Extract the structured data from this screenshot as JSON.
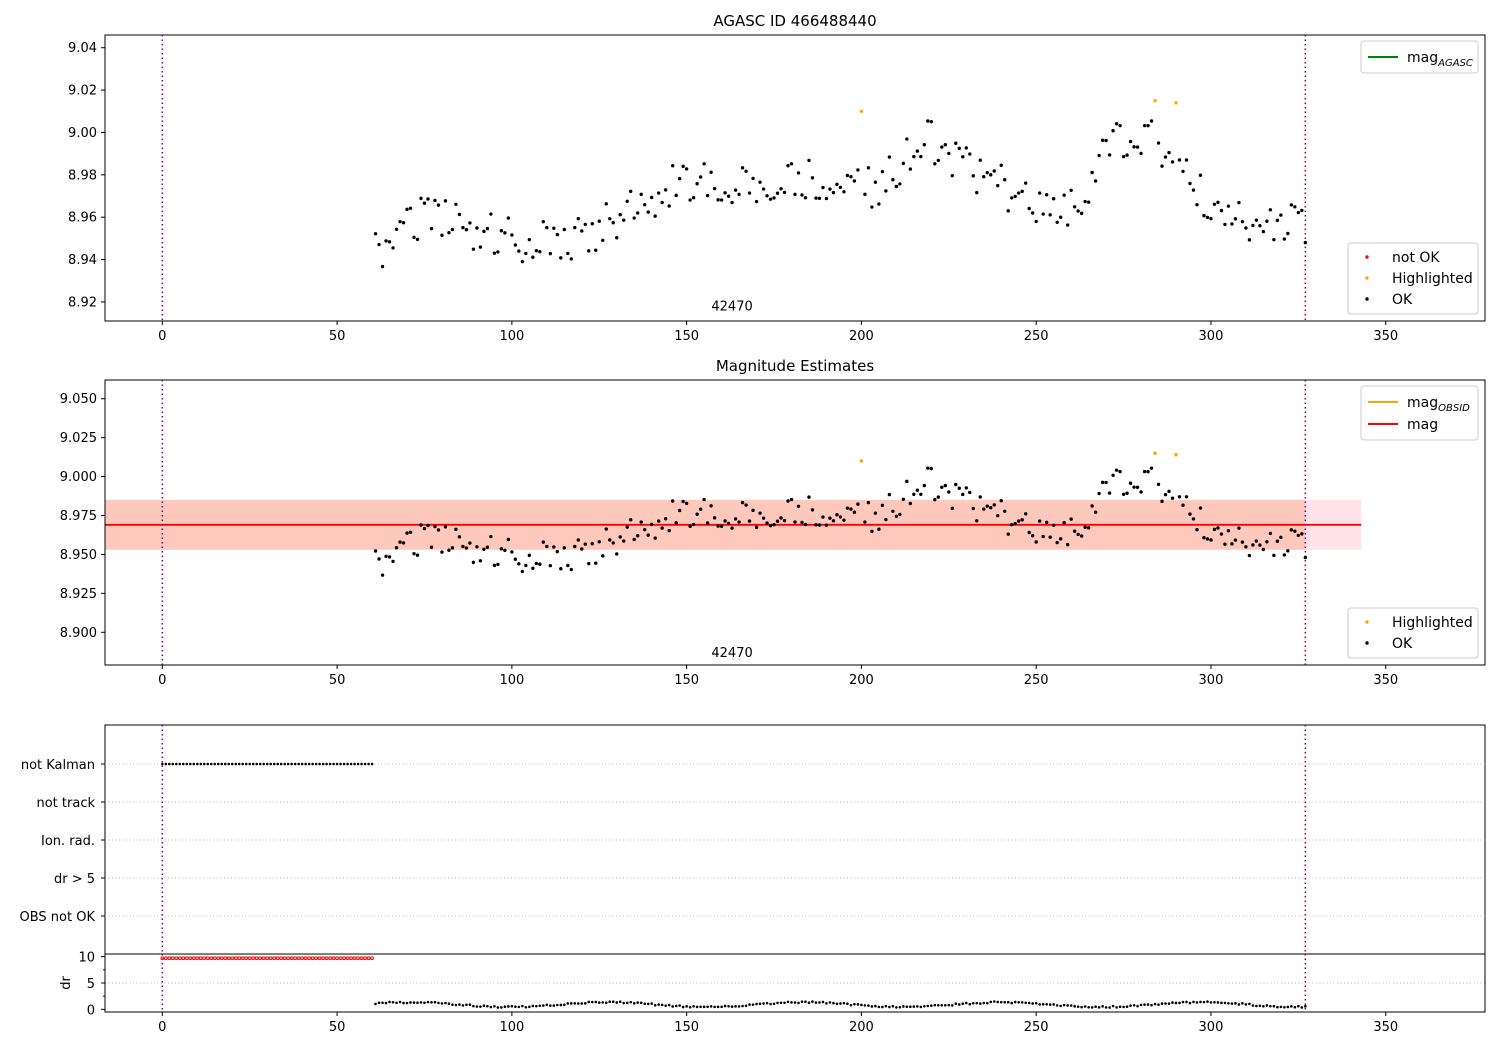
{
  "chart_data": [
    {
      "type": "scatter",
      "title": "AGASC ID 466488440",
      "xlim": [
        -16.4,
        378.4
      ],
      "ylim": [
        8.911,
        9.046
      ],
      "x_ticks": [
        0,
        50,
        100,
        150,
        200,
        250,
        300,
        350
      ],
      "y_ticks": [
        8.92,
        8.94,
        8.96,
        8.98,
        9.0,
        9.02,
        9.04
      ],
      "y_tick_format": 2,
      "vlines": [
        0,
        327
      ],
      "obsid_label": {
        "text": "42470",
        "x": 163,
        "y": 8.916
      },
      "legend_top": {
        "position": "top-right",
        "entries": [
          {
            "name": "mag",
            "sub": "AGASC",
            "color": "#008000",
            "kind": "line"
          }
        ]
      },
      "legend_bottom": {
        "position": "bottom-right",
        "entries": [
          {
            "name": "not OK",
            "color": "#ff0000",
            "kind": "dot"
          },
          {
            "name": "Highlighted",
            "color": "#ffa500",
            "kind": "dot"
          },
          {
            "name": "OK",
            "color": "#000000",
            "kind": "dot"
          }
        ]
      },
      "series": [
        {
          "name": "OK",
          "color": "#000000",
          "trend": "ok"
        },
        {
          "name": "Highlighted",
          "color": "#ffa500",
          "points": [
            [
              200,
              9.01
            ],
            [
              284,
              9.015
            ],
            [
              290,
              9.014
            ]
          ]
        }
      ]
    },
    {
      "type": "scatter",
      "title": "Magnitude Estimates",
      "xlim": [
        -16.4,
        378.4
      ],
      "ylim": [
        8.879,
        9.062
      ],
      "x_ticks": [
        0,
        50,
        100,
        150,
        200,
        250,
        300,
        350
      ],
      "y_ticks": [
        8.9,
        8.925,
        8.95,
        8.975,
        9.0,
        9.025,
        9.05
      ],
      "y_tick_format": 3,
      "vlines": [
        0,
        327
      ],
      "obsid_label": {
        "text": "42470",
        "x": 163,
        "y": 8.884
      },
      "mag_line": {
        "value": 8.969,
        "x_end": 343,
        "color": "#ff0000"
      },
      "band_outer": {
        "low": 8.953,
        "high": 8.985,
        "x_end": 343,
        "color": "#ffc0cb"
      },
      "band_inner": {
        "low": 8.953,
        "high": 8.985,
        "x_start": 61,
        "x_end": 327,
        "color": "#ffa07a"
      },
      "legend_top": {
        "position": "top-right",
        "entries": [
          {
            "name": "mag",
            "sub": "OBSID",
            "color": "#ffa500",
            "kind": "line"
          },
          {
            "name": "mag",
            "sub": "",
            "color": "#ff0000",
            "kind": "line"
          }
        ]
      },
      "legend_bottom": {
        "position": "bottom-right",
        "entries": [
          {
            "name": "Highlighted",
            "color": "#ffa500",
            "kind": "dot"
          },
          {
            "name": "OK",
            "color": "#000000",
            "kind": "dot"
          }
        ]
      },
      "series": [
        {
          "name": "OK",
          "color": "#000000",
          "trend": "ok"
        },
        {
          "name": "Highlighted",
          "color": "#ffa500",
          "points": [
            [
              200,
              9.01
            ],
            [
              284,
              9.015
            ],
            [
              290,
              9.014
            ]
          ]
        }
      ]
    },
    {
      "type": "scatter",
      "title": "",
      "xlim": [
        -16.4,
        378.4
      ],
      "x_ticks": [
        0,
        50,
        100,
        150,
        200,
        250,
        300,
        350
      ],
      "vlines": [
        0,
        327
      ],
      "flag_categories": [
        "not Kalman",
        "not track",
        "Ion. rad.",
        "dr > 5",
        "OBS not OK"
      ],
      "flag_series": [
        {
          "name": "not Kalman",
          "x_range": [
            0,
            60
          ],
          "color": "#000000"
        }
      ],
      "dr": {
        "ylabel": "dr",
        "ylim": [
          -0.5,
          10.5
        ],
        "y_ticks": [
          0,
          5,
          10
        ],
        "hline": 5,
        "red_series": {
          "x_range": [
            0,
            60
          ],
          "value": 9.7,
          "color": "#ff0000"
        },
        "black_series": {
          "x_range": [
            61,
            327
          ],
          "color": "#000000"
        }
      }
    }
  ]
}
